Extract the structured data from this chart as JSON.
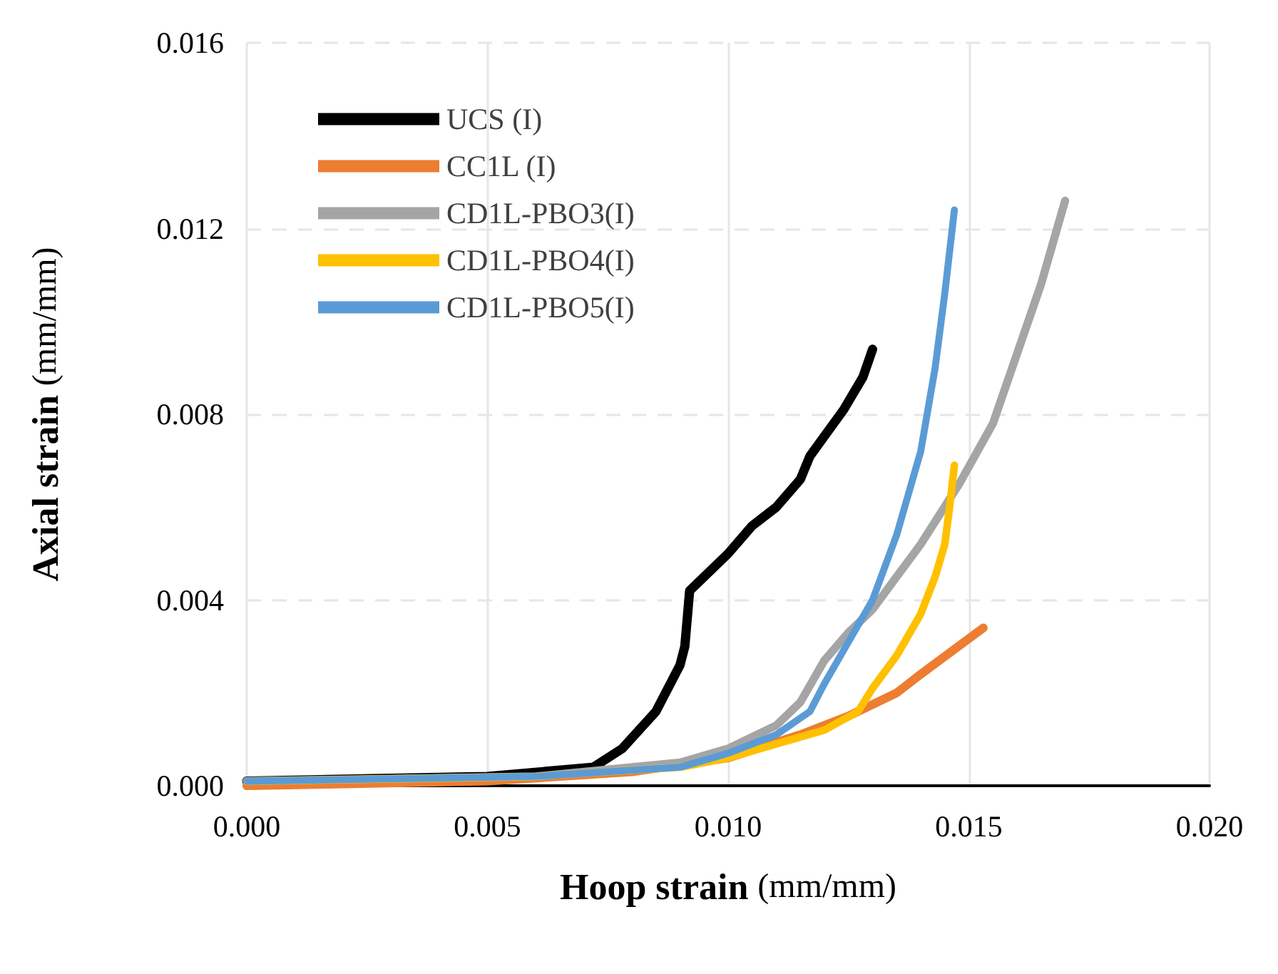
{
  "chart_data": {
    "type": "line",
    "xlabel": "Hoop strain (mm/mm)",
    "ylabel": "Axial strain (mm/mm)",
    "xlim": [
      0,
      0.02
    ],
    "ylim": [
      0,
      0.016
    ],
    "xticks": [
      {
        "value": 0,
        "label": "0.000"
      },
      {
        "value": 0.005,
        "label": "0.005"
      },
      {
        "value": 0.01,
        "label": "0.010"
      },
      {
        "value": 0.015,
        "label": "0.015"
      },
      {
        "value": 0.02,
        "label": "0.020"
      }
    ],
    "yticks": [
      {
        "value": 0,
        "label": "0.000"
      },
      {
        "value": 0.004,
        "label": "0.004"
      },
      {
        "value": 0.008,
        "label": "0.008"
      },
      {
        "value": 0.012,
        "label": "0.012"
      },
      {
        "value": 0.016,
        "label": "0.016"
      }
    ],
    "grid": true,
    "legend": "top left",
    "marker": "none",
    "line_style": "solid",
    "series": [
      {
        "name": "UCS (I)",
        "color": "#000000",
        "x": [
          0,
          0.005,
          0.0072,
          0.0078,
          0.0085,
          0.009,
          0.0091,
          0.0092,
          0.01,
          0.0105,
          0.011,
          0.0115,
          0.0117,
          0.0124,
          0.0128,
          0.013
        ],
        "values": [
          0.0001,
          0.0002,
          0.0004,
          0.0008,
          0.0016,
          0.0026,
          0.003,
          0.0042,
          0.005,
          0.0056,
          0.006,
          0.0066,
          0.0071,
          0.0081,
          0.0088,
          0.0094
        ]
      },
      {
        "name": "CC1L (I)",
        "color": "#ed7d31",
        "x": [
          0,
          0.005,
          0.008,
          0.01,
          0.0115,
          0.0125,
          0.0135,
          0.014,
          0.0153
        ],
        "values": [
          0,
          0.0001,
          0.0003,
          0.0006,
          0.0011,
          0.0015,
          0.002,
          0.0024,
          0.0034
        ]
      },
      {
        "name": "CD1L-PBO3(I)",
        "color": "#a5a5a5",
        "x": [
          0,
          0.006,
          0.009,
          0.01,
          0.011,
          0.0115,
          0.012,
          0.0125,
          0.013,
          0.0135,
          0.014,
          0.0148,
          0.0155,
          0.016,
          0.0165,
          0.017
        ],
        "values": [
          0.0001,
          0.0002,
          0.0005,
          0.0008,
          0.0013,
          0.0018,
          0.0027,
          0.0033,
          0.0038,
          0.0045,
          0.0052,
          0.0065,
          0.0078,
          0.0093,
          0.0108,
          0.0126
        ]
      },
      {
        "name": "CD1L-PBO4(I)",
        "color": "#ffc000",
        "x": [
          0,
          0.006,
          0.009,
          0.01,
          0.011,
          0.012,
          0.0127,
          0.013,
          0.0135,
          0.014,
          0.0143,
          0.0145,
          0.0146,
          0.0147
        ],
        "values": [
          0.0001,
          0.0002,
          0.0004,
          0.0006,
          0.0009,
          0.0012,
          0.0016,
          0.0021,
          0.0028,
          0.0037,
          0.0045,
          0.0052,
          0.006,
          0.0069
        ]
      },
      {
        "name": "CD1L-PBO5(I)",
        "color": "#5b9bd5",
        "x": [
          0,
          0.006,
          0.009,
          0.01,
          0.011,
          0.0117,
          0.012,
          0.0125,
          0.013,
          0.0135,
          0.014,
          0.0143,
          0.0145,
          0.0147
        ],
        "values": [
          0.0001,
          0.0002,
          0.0004,
          0.0007,
          0.0011,
          0.0016,
          0.0022,
          0.0031,
          0.004,
          0.0054,
          0.0072,
          0.009,
          0.0106,
          0.0124
        ]
      }
    ]
  }
}
